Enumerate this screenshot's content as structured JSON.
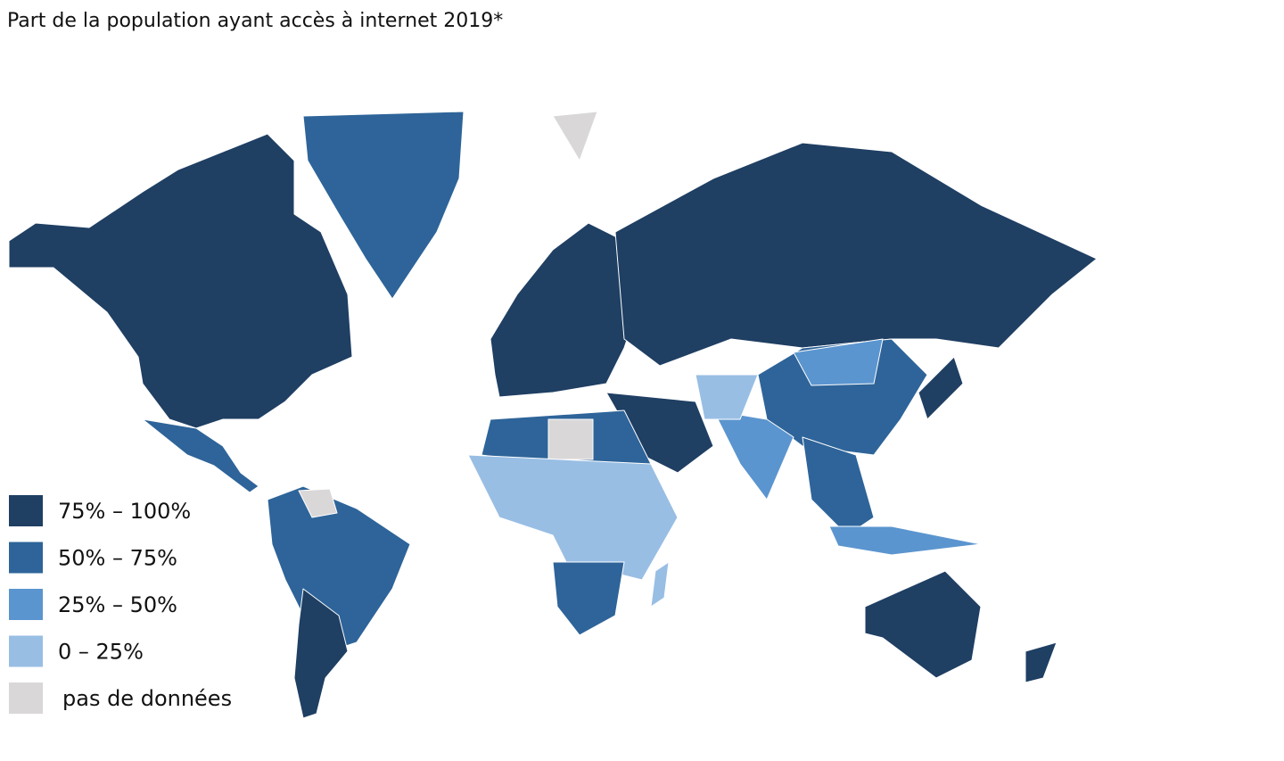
{
  "header": {
    "title": "Part de la population ayant accès à internet 2019*"
  },
  "legend": {
    "items": [
      {
        "label": "75% – 100%",
        "color": "#1f3f63"
      },
      {
        "label": "50% – 75%",
        "color": "#2e6499"
      },
      {
        "label": "25% – 50%",
        "color": "#5b95cf"
      },
      {
        "label": "0 – 25%",
        "color": "#98bee4"
      },
      {
        "label": "pas de données",
        "color": "#d9d7d7"
      }
    ]
  }
}
